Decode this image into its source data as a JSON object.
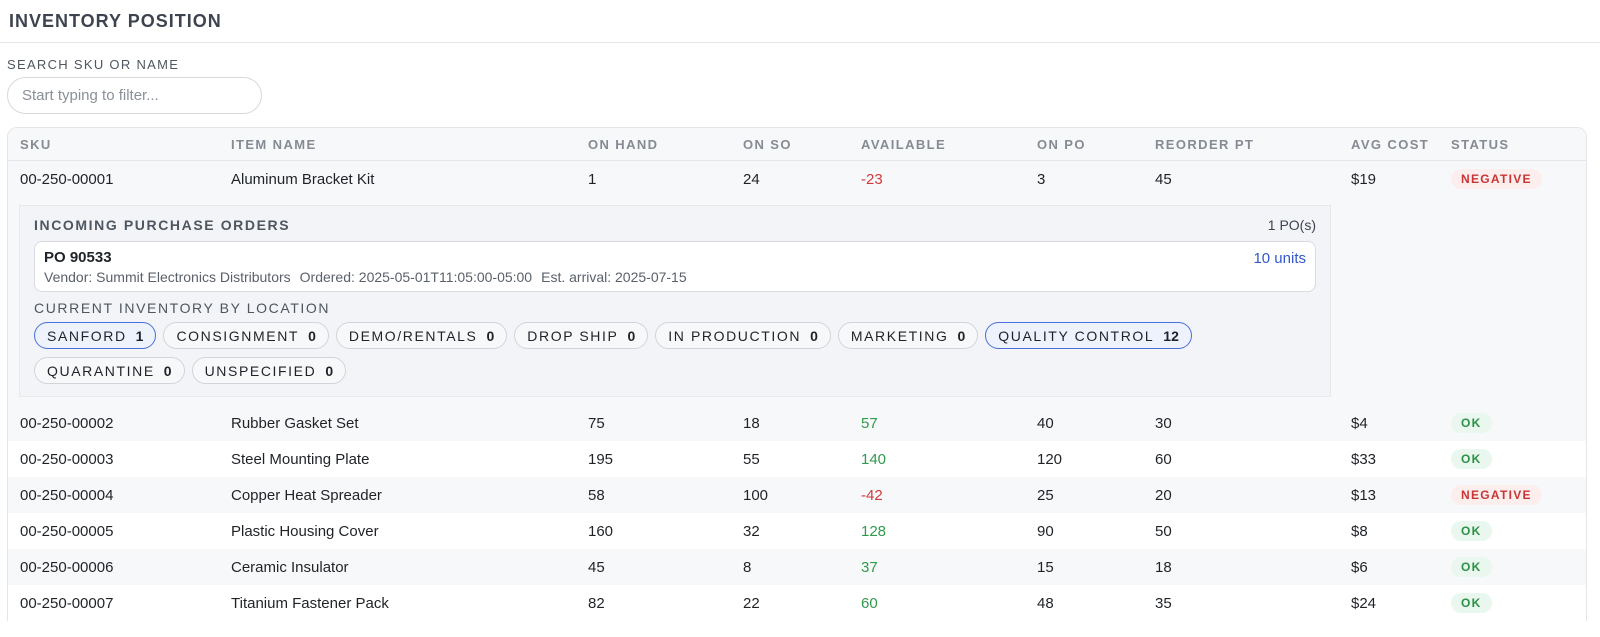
{
  "header": {
    "title": "INVENTORY POSITION"
  },
  "search": {
    "label": "SEARCH SKU OR NAME",
    "placeholder": "Start typing to filter...",
    "value": ""
  },
  "table": {
    "columns": [
      "SKU",
      "ITEM NAME",
      "ON HAND",
      "ON SO",
      "AVAILABLE",
      "ON PO",
      "REORDER PT",
      "AVG COST",
      "STATUS"
    ],
    "rows": [
      {
        "sku": "00-250-00001",
        "name": "Aluminum Bracket Kit",
        "on_hand": "1",
        "on_so": "24",
        "available": "-23",
        "on_po": "3",
        "reorder": "45",
        "cost": "$19",
        "status": "NEGATIVE"
      },
      {
        "sku": "00-250-00002",
        "name": "Rubber Gasket Set",
        "on_hand": "75",
        "on_so": "18",
        "available": "57",
        "on_po": "40",
        "reorder": "30",
        "cost": "$4",
        "status": "OK"
      },
      {
        "sku": "00-250-00003",
        "name": "Steel Mounting Plate",
        "on_hand": "195",
        "on_so": "55",
        "available": "140",
        "on_po": "120",
        "reorder": "60",
        "cost": "$33",
        "status": "OK"
      },
      {
        "sku": "00-250-00004",
        "name": "Copper Heat Spreader",
        "on_hand": "58",
        "on_so": "100",
        "available": "-42",
        "on_po": "25",
        "reorder": "20",
        "cost": "$13",
        "status": "NEGATIVE"
      },
      {
        "sku": "00-250-00005",
        "name": "Plastic Housing Cover",
        "on_hand": "160",
        "on_so": "32",
        "available": "128",
        "on_po": "90",
        "reorder": "50",
        "cost": "$8",
        "status": "OK"
      },
      {
        "sku": "00-250-00006",
        "name": "Ceramic Insulator",
        "on_hand": "45",
        "on_so": "8",
        "available": "37",
        "on_po": "15",
        "reorder": "18",
        "cost": "$6",
        "status": "OK"
      },
      {
        "sku": "00-250-00007",
        "name": "Titanium Fastener Pack",
        "on_hand": "82",
        "on_so": "22",
        "available": "60",
        "on_po": "48",
        "reorder": "35",
        "cost": "$24",
        "status": "OK"
      }
    ]
  },
  "expanded": {
    "title": "INCOMING PURCHASE ORDERS",
    "po_count": "1 PO(s)",
    "po": {
      "number": "PO 90533",
      "vendor": "Vendor: Summit Electronics Distributors",
      "ordered": "Ordered: 2025-05-01T11:05:00-05:00",
      "arrival": "Est. arrival: 2025-07-15",
      "units": "10 units"
    },
    "locations_title": "CURRENT INVENTORY BY LOCATION",
    "locations": [
      {
        "name": "SANFORD",
        "count": "1",
        "active": true
      },
      {
        "name": "CONSIGNMENT",
        "count": "0",
        "active": false
      },
      {
        "name": "DEMO/RENTALS",
        "count": "0",
        "active": false
      },
      {
        "name": "DROP SHIP",
        "count": "0",
        "active": false
      },
      {
        "name": "IN PRODUCTION",
        "count": "0",
        "active": false
      },
      {
        "name": "MARKETING",
        "count": "0",
        "active": false
      },
      {
        "name": "QUALITY CONTROL",
        "count": "12",
        "active": true
      },
      {
        "name": "QUARANTINE",
        "count": "0",
        "active": false
      },
      {
        "name": "UNSPECIFIED",
        "count": "0",
        "active": false
      }
    ]
  },
  "colors": {
    "negative": "#cf3b3b",
    "positive": "#2f9a4c",
    "accent": "#3357cc"
  }
}
